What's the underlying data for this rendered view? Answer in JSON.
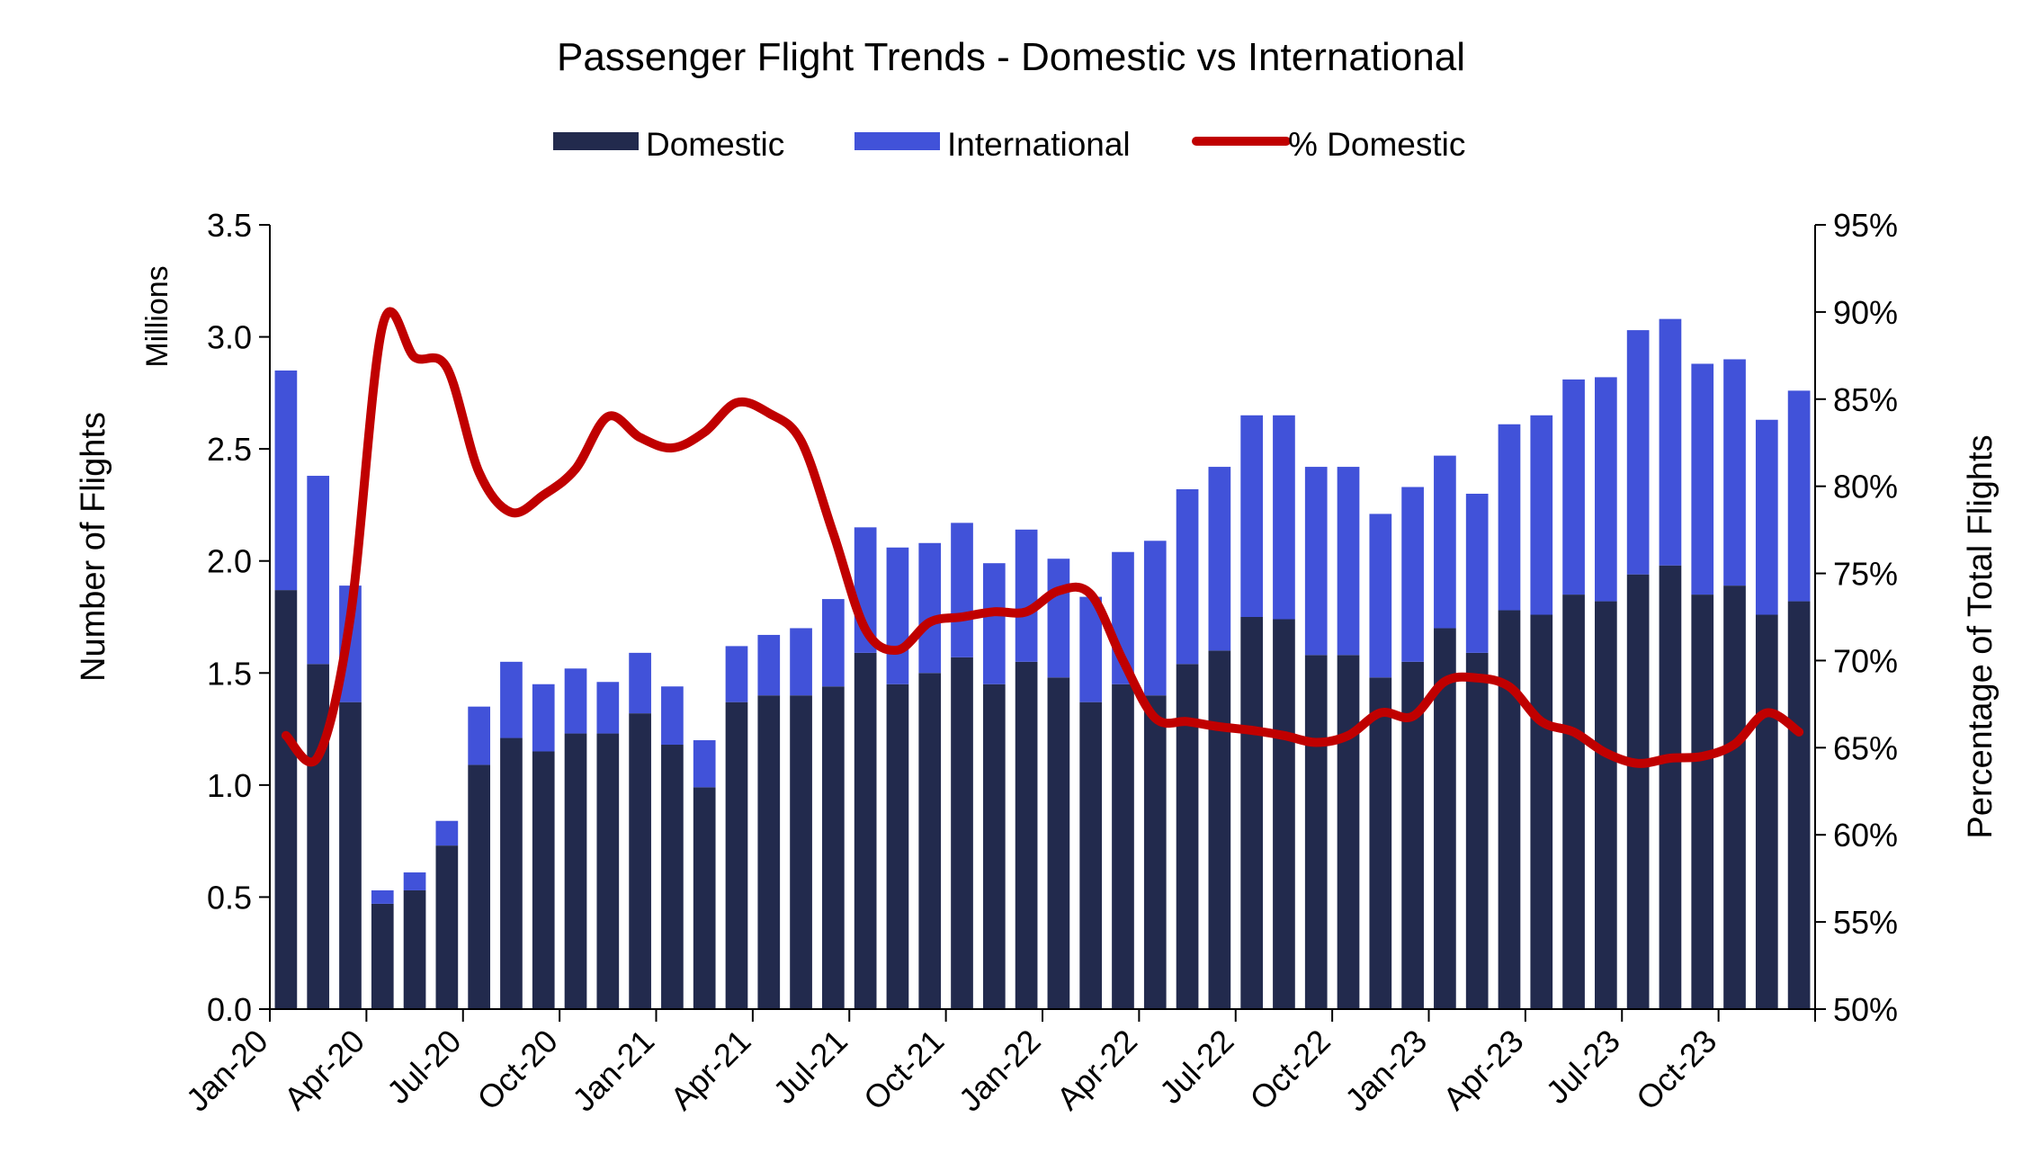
{
  "chart_data": {
    "type": "bar",
    "stacked": true,
    "title": "Passenger Flight Trends - Domestic vs International",
    "legend": [
      "Domestic",
      "International",
      "% Domestic"
    ],
    "legend_position": "top",
    "units_label": "Millions",
    "ylabel": "Number of Flights",
    "y2label": "Percentage of Total Flights",
    "ylim": [
      0,
      3.5
    ],
    "y2lim": [
      0.5,
      0.95
    ],
    "y_ticks": [
      "0.0",
      "0.5",
      "1.0",
      "1.5",
      "2.0",
      "2.5",
      "3.0",
      "3.5"
    ],
    "y2_ticks": [
      "50%",
      "55%",
      "60%",
      "65%",
      "70%",
      "75%",
      "80%",
      "85%",
      "90%",
      "95%"
    ],
    "x_tick_labels": [
      "Jan-20",
      "Apr-20",
      "Jul-20",
      "Oct-20",
      "Jan-21",
      "Apr-21",
      "Jul-21",
      "Oct-21",
      "Jan-22",
      "Apr-22",
      "Jul-22",
      "Oct-22",
      "Jan-23",
      "Apr-23",
      "Jul-23",
      "Oct-23"
    ],
    "colors": {
      "domestic": "#222a4d",
      "international": "#4152d9",
      "pct_line": "#c00000"
    },
    "categories": [
      "Jan-20",
      "Feb-20",
      "Mar-20",
      "Apr-20",
      "May-20",
      "Jun-20",
      "Jul-20",
      "Aug-20",
      "Sep-20",
      "Oct-20",
      "Nov-20",
      "Dec-20",
      "Jan-21",
      "Feb-21",
      "Mar-21",
      "Apr-21",
      "May-21",
      "Jun-21",
      "Jul-21",
      "Aug-21",
      "Sep-21",
      "Oct-21",
      "Nov-21",
      "Dec-21",
      "Jan-22",
      "Feb-22",
      "Mar-22",
      "Apr-22",
      "May-22",
      "Jun-22",
      "Jul-22",
      "Aug-22",
      "Sep-22",
      "Oct-22",
      "Nov-22",
      "Dec-22",
      "Jan-23",
      "Feb-23",
      "Mar-23",
      "Apr-23",
      "May-23",
      "Jun-23",
      "Jul-23",
      "Aug-23",
      "Sep-23",
      "Oct-23",
      "Nov-23",
      "Dec-23"
    ],
    "series": [
      {
        "name": "Domestic",
        "kind": "bar",
        "values": [
          1.87,
          1.54,
          1.37,
          0.47,
          0.53,
          0.73,
          1.09,
          1.21,
          1.15,
          1.23,
          1.23,
          1.32,
          1.18,
          0.99,
          1.37,
          1.4,
          1.4,
          1.44,
          1.59,
          1.45,
          1.5,
          1.57,
          1.45,
          1.55,
          1.48,
          1.37,
          1.45,
          1.4,
          1.54,
          1.6,
          1.75,
          1.74,
          1.58,
          1.58,
          1.48,
          1.55,
          1.7,
          1.59,
          1.78,
          1.76,
          1.85,
          1.82,
          1.94,
          1.98,
          1.85,
          1.89,
          1.76,
          1.82
        ]
      },
      {
        "name": "International",
        "kind": "bar",
        "values": [
          0.98,
          0.84,
          0.52,
          0.06,
          0.08,
          0.11,
          0.26,
          0.34,
          0.3,
          0.29,
          0.23,
          0.27,
          0.26,
          0.21,
          0.25,
          0.27,
          0.3,
          0.39,
          0.56,
          0.61,
          0.58,
          0.6,
          0.54,
          0.59,
          0.53,
          0.47,
          0.59,
          0.69,
          0.78,
          0.82,
          0.9,
          0.91,
          0.84,
          0.84,
          0.73,
          0.78,
          0.77,
          0.71,
          0.83,
          0.89,
          0.96,
          1.0,
          1.09,
          1.1,
          1.03,
          1.01,
          0.87,
          0.94
        ]
      },
      {
        "name": "% Domestic",
        "kind": "line",
        "axis": "right",
        "values": [
          0.657,
          0.645,
          0.725,
          0.892,
          0.874,
          0.868,
          0.808,
          0.785,
          0.795,
          0.81,
          0.84,
          0.828,
          0.822,
          0.831,
          0.848,
          0.842,
          0.826,
          0.773,
          0.718,
          0.706,
          0.722,
          0.725,
          0.728,
          0.728,
          0.74,
          0.738,
          0.7,
          0.667,
          0.665,
          0.662,
          0.66,
          0.657,
          0.653,
          0.657,
          0.67,
          0.668,
          0.688,
          0.69,
          0.685,
          0.665,
          0.659,
          0.647,
          0.641,
          0.644,
          0.645,
          0.652,
          0.67,
          0.659
        ]
      }
    ]
  }
}
